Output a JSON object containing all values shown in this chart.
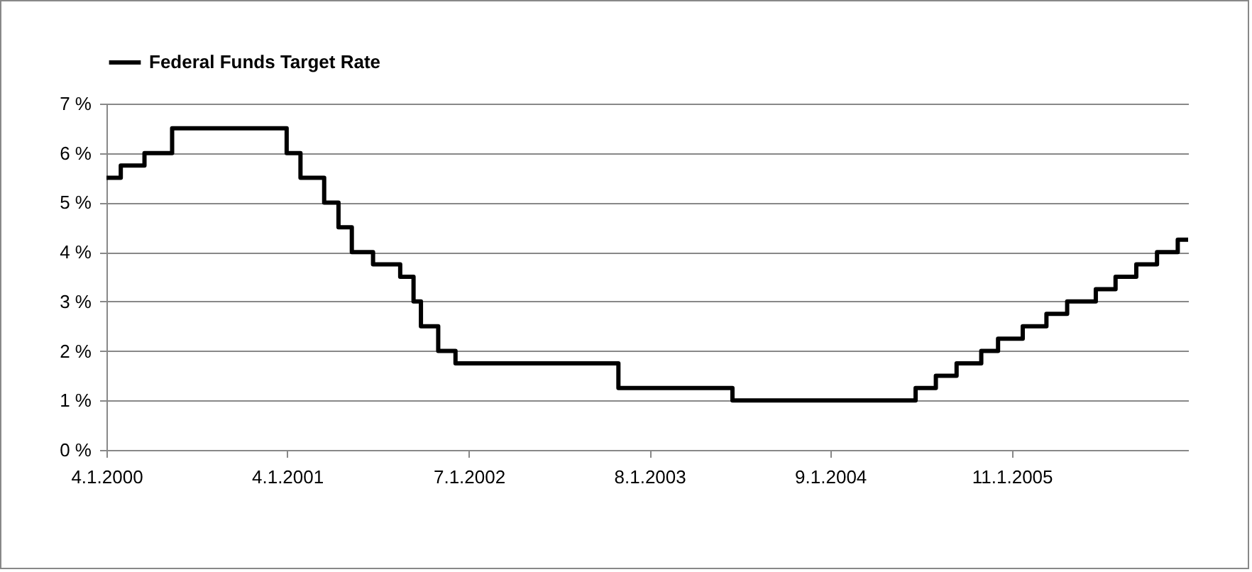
{
  "chart_data": {
    "type": "step",
    "legend": "top",
    "grid": "y",
    "line_style": "solid",
    "marker": "none",
    "x": [
      "2000-01-04",
      "2000-02-02",
      "2000-03-21",
      "2000-05-16",
      "2001-01-03",
      "2001-01-31",
      "2001-03-20",
      "2001-04-18",
      "2001-05-15",
      "2001-06-27",
      "2001-08-21",
      "2001-09-17",
      "2001-10-02",
      "2001-11-06",
      "2001-12-11",
      "2002-11-06",
      "2003-06-25",
      "2004-06-30",
      "2004-08-10",
      "2004-09-21",
      "2004-11-10",
      "2004-12-14",
      "2005-02-02",
      "2005-03-22",
      "2005-05-03",
      "2005-06-30",
      "2005-08-09",
      "2005-09-20",
      "2005-11-01",
      "2005-12-13",
      "2006-01-03"
    ],
    "series": [
      {
        "name": "Federal Funds Target Rate",
        "color": "#000000",
        "values": [
          5.5,
          5.75,
          6.0,
          6.5,
          6.0,
          5.5,
          5.0,
          4.5,
          4.0,
          3.75,
          3.5,
          3.0,
          2.5,
          2.0,
          1.75,
          1.25,
          1.0,
          1.25,
          1.5,
          1.75,
          2.0,
          2.25,
          2.5,
          2.75,
          3.0,
          3.25,
          3.5,
          3.75,
          4.0,
          4.25,
          4.25
        ]
      }
    ],
    "xlim": [
      "2000-01-04",
      "2006-01-03"
    ],
    "xticks": [
      {
        "value": "2000-01-04",
        "label": "4.1.2000"
      },
      {
        "value": "2001-01-04",
        "label": "4.1.2001"
      },
      {
        "value": "2002-01-07",
        "label": "7.1.2002"
      },
      {
        "value": "2003-01-08",
        "label": "8.1.2003"
      },
      {
        "value": "2004-01-09",
        "label": "9.1.2004"
      },
      {
        "value": "2005-01-11",
        "label": "11.1.2005"
      }
    ],
    "ylim": [
      0,
      7
    ],
    "yticks": [
      {
        "value": 0,
        "label": "0 %"
      },
      {
        "value": 1,
        "label": "1 %"
      },
      {
        "value": 2,
        "label": "2 %"
      },
      {
        "value": 3,
        "label": "3 %"
      },
      {
        "value": 4,
        "label": "4 %"
      },
      {
        "value": 5,
        "label": "5 %"
      },
      {
        "value": 6,
        "label": "6 %"
      },
      {
        "value": 7,
        "label": "7 %"
      }
    ]
  }
}
